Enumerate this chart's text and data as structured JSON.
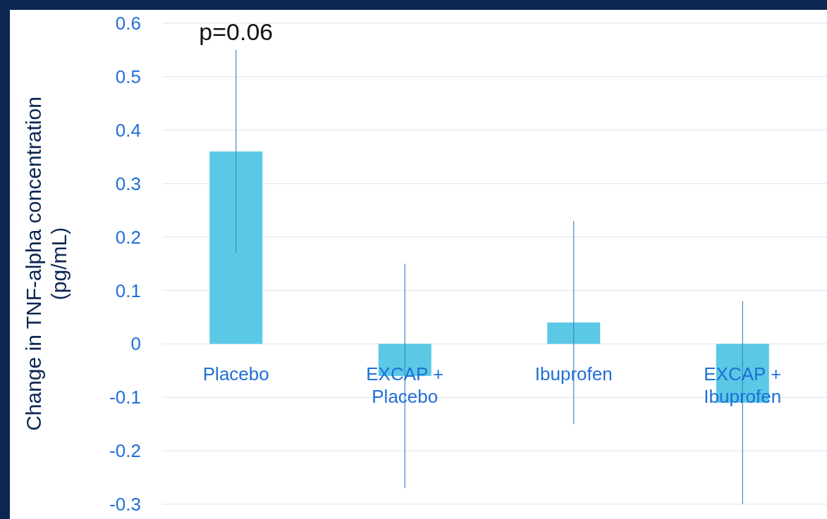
{
  "chart_data": {
    "type": "bar",
    "ylabel": "Change in TNF-alpha concentration (pg/mL)",
    "categories": [
      "Placebo",
      "EXCAP + Placebo",
      "Ibuprofen",
      "EXCAP + Ibuprofen"
    ],
    "values": [
      0.36,
      -0.06,
      0.04,
      -0.11
    ],
    "errors": [
      [
        0.17,
        0.55
      ],
      [
        -0.27,
        0.15
      ],
      [
        -0.15,
        0.23
      ],
      [
        -0.3,
        0.08
      ]
    ],
    "color": "#5bc8e6",
    "ylim": [
      -0.3,
      0.6
    ],
    "yticks": [
      -0.3,
      -0.2,
      -0.1,
      0,
      0.1,
      0.2,
      0.3,
      0.4,
      0.5,
      0.6
    ],
    "grid": true,
    "annotations": [
      "p=0.06"
    ]
  }
}
